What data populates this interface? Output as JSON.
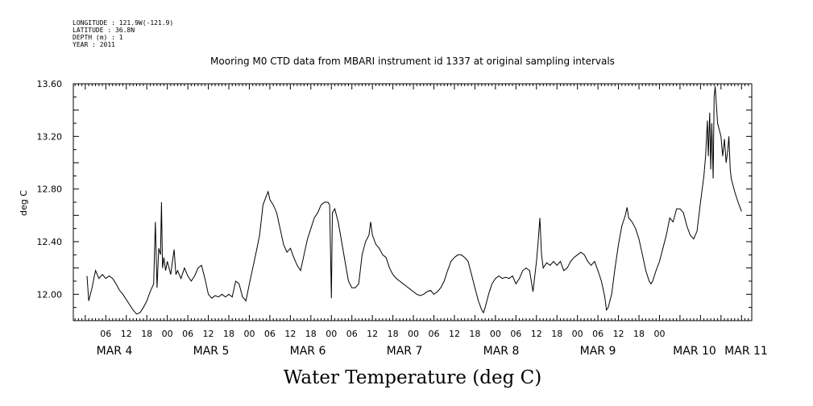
{
  "header": {
    "longitude": "LONGITUDE : 121.9W(-121.9)",
    "latitude": "LATITUDE : 36.8N",
    "depth": "DEPTH (m) : 1",
    "year": "YEAR : 2011"
  },
  "chart_data": {
    "type": "line",
    "title": "Mooring M0 CTD data from MBARI instrument id 1337 at original sampling intervals",
    "ylabel": "deg C",
    "xlabel": "Water Temperature (deg C)",
    "ylim": [
      11.78,
      13.6
    ],
    "xlim_hours": [
      0,
      168
    ],
    "grid": false,
    "y_ticks": [
      "12.00",
      "12.40",
      "12.80",
      "13.20",
      "13.60"
    ],
    "hour_labels": [
      "06",
      "12",
      "18",
      "00",
      "06",
      "12",
      "18",
      "00",
      "06",
      "12",
      "18",
      "00",
      "06",
      "12",
      "18",
      "00",
      "06",
      "12",
      "18",
      "00",
      "06",
      "12",
      "18",
      "00",
      "06",
      "12",
      "18",
      "00"
    ],
    "day_labels": [
      "MAR  4",
      "MAR  5",
      "MAR  6",
      "MAR  7",
      "MAR  8",
      "MAR  9",
      "MAR 10",
      "MAR 11"
    ],
    "series": [
      {
        "x_note": "hours after 2011-03-04 00:00",
        "points": [
          [
            0.5,
            12.14
          ],
          [
            1,
            11.95
          ],
          [
            1.5,
            12.0
          ],
          [
            2,
            12.05
          ],
          [
            2.5,
            12.12
          ],
          [
            3,
            12.18
          ],
          [
            4,
            12.12
          ],
          [
            5,
            12.15
          ],
          [
            6,
            12.12
          ],
          [
            7,
            12.14
          ],
          [
            8,
            12.12
          ],
          [
            9,
            12.08
          ],
          [
            10,
            12.03
          ],
          [
            11,
            12.0
          ],
          [
            12,
            11.96
          ],
          [
            13,
            11.92
          ],
          [
            14,
            11.88
          ],
          [
            15,
            11.85
          ],
          [
            16,
            11.86
          ],
          [
            17,
            11.9
          ],
          [
            18,
            11.95
          ],
          [
            19,
            12.02
          ],
          [
            20,
            12.08
          ],
          [
            20.5,
            12.55
          ],
          [
            21,
            12.05
          ],
          [
            21.5,
            12.35
          ],
          [
            22,
            12.3
          ],
          [
            22.3,
            12.7
          ],
          [
            22.6,
            12.2
          ],
          [
            23,
            12.28
          ],
          [
            23.5,
            12.18
          ],
          [
            24,
            12.25
          ],
          [
            24.5,
            12.2
          ],
          [
            25,
            12.15
          ],
          [
            25.5,
            12.25
          ],
          [
            26,
            12.34
          ],
          [
            26.5,
            12.15
          ],
          [
            27,
            12.18
          ],
          [
            28,
            12.12
          ],
          [
            29,
            12.2
          ],
          [
            30,
            12.14
          ],
          [
            31,
            12.1
          ],
          [
            32,
            12.14
          ],
          [
            33,
            12.2
          ],
          [
            34,
            12.22
          ],
          [
            35,
            12.12
          ],
          [
            36,
            12.0
          ],
          [
            37,
            11.97
          ],
          [
            38,
            11.99
          ],
          [
            39,
            11.98
          ],
          [
            40,
            12.0
          ],
          [
            41,
            11.98
          ],
          [
            42,
            12.0
          ],
          [
            43,
            11.98
          ],
          [
            44,
            12.1
          ],
          [
            45,
            12.08
          ],
          [
            46,
            11.98
          ],
          [
            47,
            11.95
          ],
          [
            48,
            12.08
          ],
          [
            49,
            12.2
          ],
          [
            50,
            12.32
          ],
          [
            51,
            12.45
          ],
          [
            52,
            12.68
          ],
          [
            53,
            12.75
          ],
          [
            53.5,
            12.78
          ],
          [
            54,
            12.72
          ],
          [
            55,
            12.68
          ],
          [
            56,
            12.62
          ],
          [
            57,
            12.5
          ],
          [
            58,
            12.38
          ],
          [
            59,
            12.32
          ],
          [
            60,
            12.35
          ],
          [
            61,
            12.28
          ],
          [
            62,
            12.22
          ],
          [
            63,
            12.18
          ],
          [
            64,
            12.3
          ],
          [
            65,
            12.42
          ],
          [
            66,
            12.5
          ],
          [
            67,
            12.58
          ],
          [
            68,
            12.62
          ],
          [
            69,
            12.68
          ],
          [
            70,
            12.7
          ],
          [
            71,
            12.7
          ],
          [
            71.5,
            12.68
          ],
          [
            72,
            11.97
          ],
          [
            72.3,
            12.62
          ],
          [
            73,
            12.65
          ],
          [
            74,
            12.55
          ],
          [
            75,
            12.4
          ],
          [
            76,
            12.25
          ],
          [
            77,
            12.1
          ],
          [
            78,
            12.05
          ],
          [
            79,
            12.05
          ],
          [
            80,
            12.08
          ],
          [
            81,
            12.3
          ],
          [
            82,
            12.4
          ],
          [
            83,
            12.45
          ],
          [
            83.5,
            12.55
          ],
          [
            84,
            12.45
          ],
          [
            85,
            12.38
          ],
          [
            86,
            12.35
          ],
          [
            87,
            12.3
          ],
          [
            88,
            12.28
          ],
          [
            89,
            12.2
          ],
          [
            90,
            12.15
          ],
          [
            91,
            12.12
          ],
          [
            92,
            12.1
          ],
          [
            93,
            12.08
          ],
          [
            94,
            12.06
          ],
          [
            95,
            12.04
          ],
          [
            96,
            12.02
          ],
          [
            97,
            12.0
          ],
          [
            98,
            11.99
          ],
          [
            99,
            12.0
          ],
          [
            100,
            12.02
          ],
          [
            101,
            12.03
          ],
          [
            102,
            12.0
          ],
          [
            103,
            12.02
          ],
          [
            104,
            12.05
          ],
          [
            105,
            12.1
          ],
          [
            106,
            12.18
          ],
          [
            107,
            12.25
          ],
          [
            108,
            12.28
          ],
          [
            109,
            12.3
          ],
          [
            110,
            12.3
          ],
          [
            111,
            12.28
          ],
          [
            112,
            12.25
          ],
          [
            113,
            12.15
          ],
          [
            114,
            12.05
          ],
          [
            115,
            11.95
          ],
          [
            116,
            11.88
          ],
          [
            116.5,
            11.86
          ],
          [
            117,
            11.9
          ],
          [
            118,
            12.0
          ],
          [
            119,
            12.08
          ],
          [
            120,
            12.12
          ],
          [
            121,
            12.14
          ],
          [
            122,
            12.12
          ],
          [
            123,
            12.13
          ],
          [
            124,
            12.12
          ],
          [
            125,
            12.14
          ],
          [
            126,
            12.08
          ],
          [
            127,
            12.12
          ],
          [
            128,
            12.18
          ],
          [
            129,
            12.2
          ],
          [
            130,
            12.18
          ],
          [
            131,
            12.02
          ],
          [
            132,
            12.25
          ],
          [
            132.5,
            12.4
          ],
          [
            133,
            12.58
          ],
          [
            133.5,
            12.3
          ],
          [
            134,
            12.2
          ],
          [
            135,
            12.24
          ],
          [
            136,
            12.22
          ],
          [
            137,
            12.25
          ],
          [
            138,
            12.22
          ],
          [
            139,
            12.25
          ],
          [
            140,
            12.18
          ],
          [
            141,
            12.2
          ],
          [
            142,
            12.25
          ],
          [
            143,
            12.28
          ],
          [
            144,
            12.3
          ],
          [
            145,
            12.32
          ],
          [
            146,
            12.3
          ],
          [
            147,
            12.25
          ],
          [
            148,
            12.22
          ],
          [
            149,
            12.25
          ],
          [
            150,
            12.18
          ],
          [
            151,
            12.1
          ],
          [
            152,
            11.98
          ],
          [
            152.5,
            11.88
          ],
          [
            153,
            11.9
          ],
          [
            154,
            12.0
          ],
          [
            155,
            12.2
          ],
          [
            156,
            12.38
          ],
          [
            157,
            12.52
          ],
          [
            158,
            12.6
          ],
          [
            158.5,
            12.66
          ],
          [
            159,
            12.58
          ],
          [
            160,
            12.55
          ],
          [
            161,
            12.5
          ],
          [
            162,
            12.42
          ],
          [
            163,
            12.3
          ],
          [
            164,
            12.18
          ],
          [
            165,
            12.1
          ],
          [
            165.5,
            12.08
          ],
          [
            166,
            12.1
          ],
          [
            167,
            12.18
          ],
          [
            168,
            12.25
          ],
          [
            169,
            12.35
          ],
          [
            170,
            12.45
          ],
          [
            171,
            12.58
          ],
          [
            172,
            12.55
          ],
          [
            173,
            12.65
          ],
          [
            174,
            12.65
          ],
          [
            175,
            12.62
          ],
          [
            176,
            12.52
          ],
          [
            177,
            12.45
          ],
          [
            178,
            12.42
          ],
          [
            179,
            12.48
          ],
          [
            180,
            12.7
          ],
          [
            181,
            12.9
          ],
          [
            181.5,
            13.05
          ],
          [
            182,
            13.32
          ],
          [
            182.3,
            13.05
          ],
          [
            182.7,
            13.38
          ],
          [
            183,
            12.95
          ],
          [
            183.3,
            13.3
          ],
          [
            183.7,
            12.88
          ],
          [
            184,
            13.5
          ],
          [
            184.3,
            13.58
          ],
          [
            184.7,
            13.42
          ],
          [
            185,
            13.3
          ],
          [
            185.5,
            13.25
          ],
          [
            186,
            13.2
          ],
          [
            186.5,
            13.05
          ],
          [
            187,
            13.18
          ],
          [
            187.5,
            13.0
          ],
          [
            188,
            13.1
          ],
          [
            188.3,
            13.2
          ],
          [
            188.7,
            12.95
          ],
          [
            189,
            12.88
          ],
          [
            190,
            12.78
          ],
          [
            191,
            12.7
          ],
          [
            192,
            12.63
          ]
        ]
      }
    ]
  }
}
